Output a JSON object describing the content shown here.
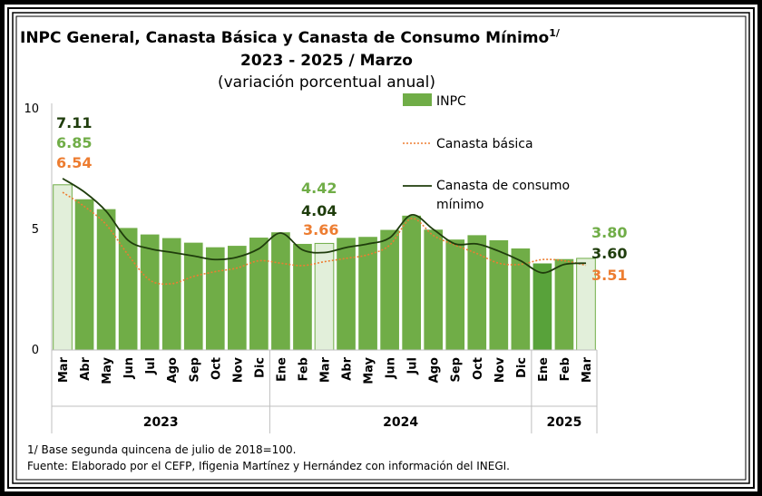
{
  "chart_data": {
    "type": "bar",
    "title": "INPC General, Canasta Básica  y Canasta de Consumo Mínimo",
    "title_sup": "1/",
    "subtitle": "2023 - 2025 / Marzo",
    "subtitle2": "(variación porcentual anual)",
    "ylim": [
      0,
      10
    ],
    "yticks": [
      "0",
      "5",
      "10"
    ],
    "categories": [
      "Mar",
      "Abr",
      "May",
      "Jun",
      "Jul",
      "Ago",
      "Sep",
      "Oct",
      "Nov",
      "Dic",
      "Ene",
      "Feb",
      "Mar",
      "Abr",
      "May",
      "Jun",
      "Jul",
      "Ago",
      "Sep",
      "Oct",
      "Nov",
      "Dic",
      "Ene",
      "Feb",
      "Mar"
    ],
    "years": [
      {
        "label": "2023",
        "start": 0,
        "end": 9
      },
      {
        "label": "2024",
        "start": 10,
        "end": 21
      },
      {
        "label": "2025",
        "start": 22,
        "end": 24
      }
    ],
    "series": [
      {
        "name": "INPC",
        "kind": "bar",
        "color": "#70ad47",
        "values": [
          6.85,
          6.25,
          5.84,
          5.06,
          4.79,
          4.64,
          4.45,
          4.26,
          4.32,
          4.66,
          4.88,
          4.4,
          4.42,
          4.65,
          4.69,
          4.98,
          5.57,
          4.99,
          4.58,
          4.76,
          4.55,
          4.21,
          3.59,
          3.77,
          3.8
        ]
      },
      {
        "name": "Canasta básica",
        "kind": "line",
        "style": "dotted",
        "color": "#ed7d31",
        "values": [
          6.54,
          5.95,
          5.2,
          3.95,
          2.9,
          2.75,
          3.05,
          3.25,
          3.4,
          3.7,
          3.6,
          3.5,
          3.66,
          3.8,
          3.95,
          4.35,
          5.45,
          4.75,
          4.35,
          4.0,
          3.6,
          3.55,
          3.75,
          3.7,
          3.51
        ]
      },
      {
        "name": "Canasta de consumo mínimo",
        "kind": "line",
        "style": "solid",
        "color": "#1f3d0c",
        "values": [
          7.11,
          6.55,
          5.75,
          4.55,
          4.2,
          4.05,
          3.9,
          3.75,
          3.85,
          4.2,
          4.85,
          4.15,
          4.04,
          4.25,
          4.4,
          4.65,
          5.6,
          5.0,
          4.4,
          4.4,
          4.1,
          3.7,
          3.2,
          3.55,
          3.6
        ]
      }
    ],
    "data_labels": [
      {
        "index": 0,
        "series": "Canasta de consumo mínimo",
        "text": "7.11",
        "color": "#1f3d0c"
      },
      {
        "index": 0,
        "series": "INPC",
        "text": "6.85",
        "color": "#70ad47"
      },
      {
        "index": 0,
        "series": "Canasta básica",
        "text": "6.54",
        "color": "#ed7d31"
      },
      {
        "index": 12,
        "series": "INPC",
        "text": "4.42",
        "color": "#70ad47"
      },
      {
        "index": 12,
        "series": "Canasta de consumo mínimo",
        "text": "4.04",
        "color": "#1f3d0c"
      },
      {
        "index": 12,
        "series": "Canasta básica",
        "text": "3.66",
        "color": "#ed7d31"
      },
      {
        "index": 24,
        "series": "INPC",
        "text": "3.80",
        "color": "#70ad47"
      },
      {
        "index": 24,
        "series": "Canasta de consumo mínimo",
        "text": "3.60",
        "color": "#1f3d0c"
      },
      {
        "index": 24,
        "series": "Canasta básica",
        "text": "3.51",
        "color": "#ed7d31"
      }
    ],
    "highlight_indices": [
      0,
      12,
      24
    ],
    "highlight_color": "#e2efda",
    "dark_bar_indices": [
      22
    ],
    "dark_bar_color": "#58a23a",
    "legend": [
      {
        "label": "INPC",
        "kind": "bar"
      },
      {
        "label": "Canasta básica",
        "kind": "dotted"
      },
      {
        "label": "Canasta de consumo\nmínimo",
        "kind": "solid"
      }
    ],
    "legend_position": "top-right",
    "grid": false
  },
  "notes": {
    "note1": "1/ Base segunda quincena de julio de 2018=100.",
    "source": "Fuente: Elaborado por el CEFP, Ifigenia Martínez y Hernández con información del INEGI."
  }
}
